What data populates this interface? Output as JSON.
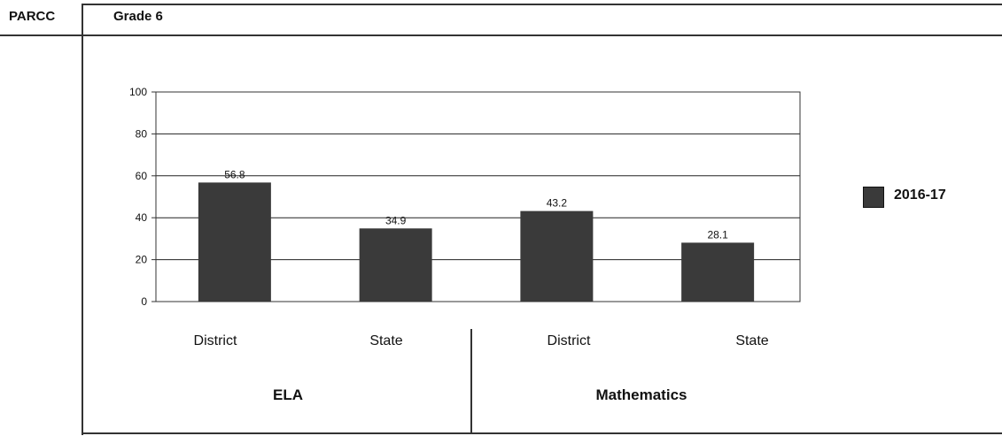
{
  "header": {
    "left_label": "PARCC",
    "title": "Grade 6"
  },
  "colors": {
    "bar": "#3a3a3a",
    "grid": "#222222",
    "axis": "#333333"
  },
  "chart_data": {
    "type": "bar",
    "title": "",
    "xlabel": "",
    "ylabel": "",
    "ylim": [
      0,
      100
    ],
    "yticks": [
      0,
      20,
      40,
      60,
      80,
      100
    ],
    "grid": true,
    "legend_position": "right",
    "categories": [
      "District",
      "State",
      "District",
      "State"
    ],
    "groups": [
      "ELA",
      "Mathematics"
    ],
    "series": [
      {
        "name": "2016-17",
        "values": [
          56.8,
          34.9,
          43.2,
          28.1
        ]
      }
    ],
    "data_labels": [
      "56.8",
      "34.9",
      "43.2",
      "28.1"
    ]
  }
}
